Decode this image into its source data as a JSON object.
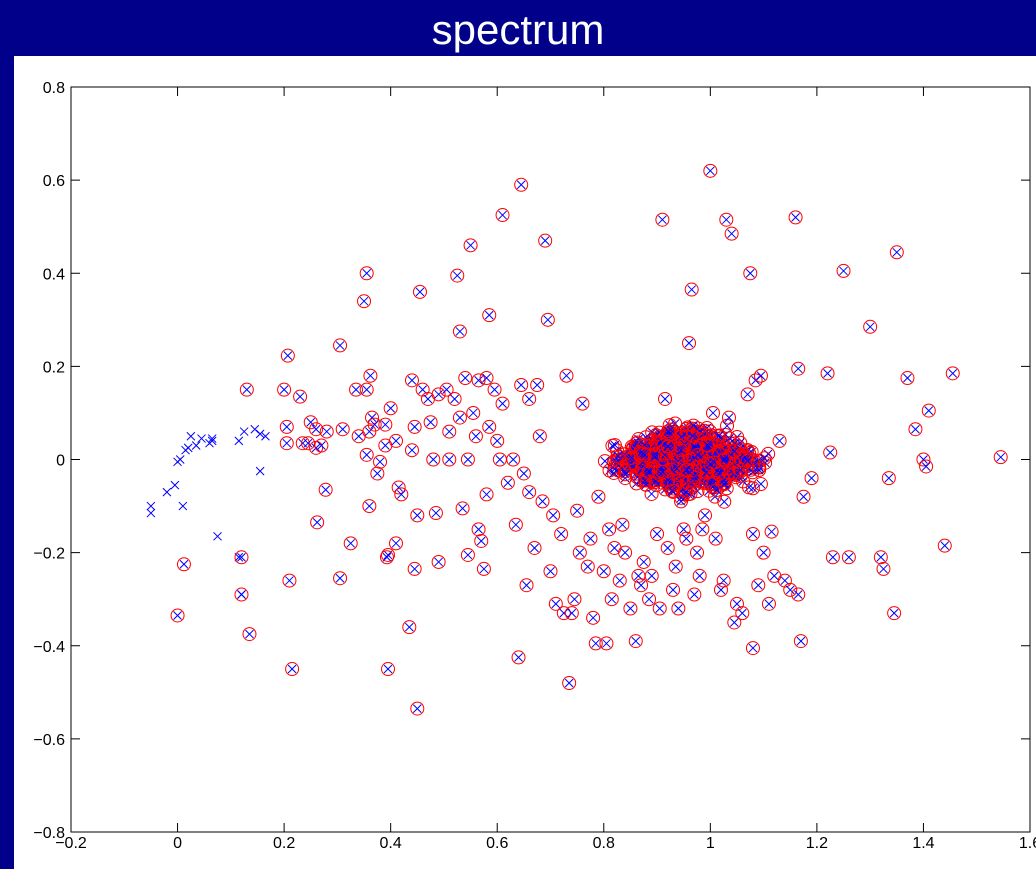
{
  "slide": {
    "title": "spectrum"
  },
  "chart_data": {
    "type": "scatter",
    "title": "",
    "xlabel": "",
    "ylabel": "",
    "xlim": [
      -0.2,
      1.6
    ],
    "ylim": [
      -0.8,
      0.8
    ],
    "x_ticks": [
      -0.2,
      0,
      0.2,
      0.4,
      0.6,
      0.8,
      1,
      1.2,
      1.4,
      1.6
    ],
    "y_ticks": [
      -0.8,
      -0.6,
      -0.4,
      -0.2,
      0,
      0.2,
      0.4,
      0.6,
      0.8
    ],
    "x_tick_labels": [
      "−0.2",
      "0",
      "0.2",
      "0.4",
      "0.6",
      "0.8",
      "1",
      "1.2",
      "1.4",
      "1.6"
    ],
    "y_tick_labels": [
      "−0.8",
      "−0.6",
      "−0.4",
      "−0.2",
      "0",
      "0.2",
      "0.4",
      "0.6",
      "0.8"
    ],
    "grid": false,
    "legend": "none",
    "series": [
      {
        "marker": "x",
        "color": "#0000ff",
        "points": [
          [
            -0.05,
            -0.1
          ],
          [
            -0.05,
            -0.115
          ],
          [
            -0.02,
            -0.07
          ],
          [
            -0.005,
            -0.055
          ],
          [
            0.01,
            -0.1
          ],
          [
            0.0,
            -0.005
          ],
          [
            0.005,
            0.0
          ],
          [
            0.015,
            0.02
          ],
          [
            0.02,
            0.025
          ],
          [
            0.025,
            0.05
          ],
          [
            0.035,
            0.03
          ],
          [
            0.045,
            0.045
          ],
          [
            0.06,
            0.035
          ],
          [
            0.065,
            0.04
          ],
          [
            0.065,
            0.045
          ],
          [
            0.075,
            -0.165
          ],
          [
            0.115,
            0.04
          ],
          [
            0.125,
            0.06
          ],
          [
            0.145,
            0.065
          ],
          [
            0.155,
            0.055
          ],
          [
            0.165,
            0.05
          ],
          [
            0.155,
            -0.025
          ],
          [
            0.115,
            -0.21
          ],
          [
            0.12,
            -0.29
          ]
        ]
      },
      {
        "marker": "x+o",
        "color": "#0000ff",
        "ring_color": "#ff0000",
        "points": [
          [
            0.0,
            -0.335
          ],
          [
            0.012,
            -0.225
          ],
          [
            0.12,
            -0.21
          ],
          [
            0.12,
            -0.29
          ],
          [
            0.13,
            0.15
          ],
          [
            0.135,
            -0.375
          ],
          [
            0.2,
            0.15
          ],
          [
            0.205,
            0.07
          ],
          [
            0.205,
            0.035
          ],
          [
            0.21,
            -0.26
          ],
          [
            0.215,
            -0.45
          ],
          [
            0.207,
            0.223
          ],
          [
            0.235,
            0.035
          ],
          [
            0.23,
            0.135
          ],
          [
            0.245,
            0.035
          ],
          [
            0.25,
            0.08
          ],
          [
            0.26,
            0.065
          ],
          [
            0.26,
            0.025
          ],
          [
            0.27,
            0.03
          ],
          [
            0.262,
            -0.135
          ],
          [
            0.28,
            0.06
          ],
          [
            0.278,
            -0.065
          ],
          [
            0.305,
            0.245
          ],
          [
            0.31,
            0.065
          ],
          [
            0.305,
            -0.255
          ],
          [
            0.325,
            -0.18
          ],
          [
            0.335,
            0.15
          ],
          [
            0.34,
            0.05
          ],
          [
            0.35,
            0.34
          ],
          [
            0.355,
            0.4
          ],
          [
            0.355,
            0.15
          ],
          [
            0.362,
            0.18
          ],
          [
            0.36,
            0.06
          ],
          [
            0.365,
            0.09
          ],
          [
            0.37,
            0.075
          ],
          [
            0.355,
            0.01
          ],
          [
            0.38,
            -0.005
          ],
          [
            0.375,
            -0.03
          ],
          [
            0.36,
            -0.1
          ],
          [
            0.39,
            0.075
          ],
          [
            0.39,
            0.03
          ],
          [
            0.4,
            0.11
          ],
          [
            0.395,
            -0.205
          ],
          [
            0.393,
            -0.21
          ],
          [
            0.41,
            0.04
          ],
          [
            0.41,
            -0.18
          ],
          [
            0.415,
            -0.06
          ],
          [
            0.42,
            -0.075
          ],
          [
            0.395,
            -0.45
          ],
          [
            0.435,
            -0.36
          ],
          [
            0.44,
            0.17
          ],
          [
            0.445,
            0.07
          ],
          [
            0.44,
            0.02
          ],
          [
            0.45,
            -0.12
          ],
          [
            0.445,
            -0.235
          ],
          [
            0.45,
            -0.535
          ],
          [
            0.455,
            0.36
          ],
          [
            0.46,
            0.15
          ],
          [
            0.47,
            0.13
          ],
          [
            0.475,
            0.08
          ],
          [
            0.48,
            0.0
          ],
          [
            0.485,
            -0.115
          ],
          [
            0.49,
            0.14
          ],
          [
            0.49,
            -0.22
          ],
          [
            0.505,
            0.15
          ],
          [
            0.51,
            0.06
          ],
          [
            0.51,
            0.0
          ],
          [
            0.52,
            0.13
          ],
          [
            0.525,
            0.395
          ],
          [
            0.53,
            0.275
          ],
          [
            0.53,
            0.09
          ],
          [
            0.535,
            -0.105
          ],
          [
            0.54,
            0.175
          ],
          [
            0.545,
            0.0
          ],
          [
            0.545,
            -0.205
          ],
          [
            0.55,
            0.46
          ],
          [
            0.555,
            0.1
          ],
          [
            0.56,
            0.05
          ],
          [
            0.565,
            0.17
          ],
          [
            0.565,
            -0.15
          ],
          [
            0.57,
            -0.175
          ],
          [
            0.575,
            -0.235
          ],
          [
            0.58,
            0.175
          ],
          [
            0.585,
            0.31
          ],
          [
            0.585,
            0.07
          ],
          [
            0.58,
            -0.075
          ],
          [
            0.595,
            0.15
          ],
          [
            0.6,
            0.04
          ],
          [
            0.605,
            0.0
          ],
          [
            0.61,
            0.525
          ],
          [
            0.61,
            0.12
          ],
          [
            0.62,
            -0.05
          ],
          [
            0.63,
            0.0
          ],
          [
            0.635,
            -0.14
          ],
          [
            0.64,
            -0.425
          ],
          [
            0.645,
            0.59
          ],
          [
            0.645,
            0.16
          ],
          [
            0.65,
            -0.03
          ],
          [
            0.655,
            -0.27
          ],
          [
            0.66,
            0.13
          ],
          [
            0.66,
            -0.07
          ],
          [
            0.67,
            -0.19
          ],
          [
            0.675,
            0.16
          ],
          [
            0.68,
            0.05
          ],
          [
            0.685,
            -0.09
          ],
          [
            0.69,
            0.47
          ],
          [
            0.695,
            0.3
          ],
          [
            0.7,
            -0.24
          ],
          [
            0.705,
            -0.12
          ],
          [
            0.71,
            -0.31
          ],
          [
            0.72,
            -0.16
          ],
          [
            0.725,
            -0.33
          ],
          [
            0.73,
            0.18
          ],
          [
            0.735,
            -0.48
          ],
          [
            0.74,
            -0.33
          ],
          [
            0.745,
            -0.3
          ],
          [
            0.75,
            -0.11
          ],
          [
            0.755,
            -0.2
          ],
          [
            0.76,
            0.12
          ],
          [
            0.77,
            -0.23
          ],
          [
            0.775,
            -0.17
          ],
          [
            0.78,
            -0.34
          ],
          [
            0.785,
            -0.395
          ],
          [
            0.79,
            -0.08
          ],
          [
            0.8,
            -0.24
          ],
          [
            0.805,
            -0.395
          ],
          [
            0.81,
            -0.15
          ],
          [
            0.815,
            -0.3
          ],
          [
            0.82,
            -0.19
          ],
          [
            0.83,
            -0.26
          ],
          [
            0.835,
            -0.14
          ],
          [
            0.84,
            -0.2
          ],
          [
            0.85,
            -0.32
          ],
          [
            0.86,
            -0.39
          ],
          [
            0.865,
            -0.25
          ],
          [
            0.87,
            -0.27
          ],
          [
            0.875,
            -0.22
          ],
          [
            0.885,
            -0.3
          ],
          [
            0.89,
            -0.25
          ],
          [
            0.9,
            -0.16
          ],
          [
            0.905,
            -0.32
          ],
          [
            0.91,
            0.515
          ],
          [
            0.915,
            0.13
          ],
          [
            0.92,
            -0.19
          ],
          [
            0.93,
            -0.28
          ],
          [
            0.935,
            -0.23
          ],
          [
            0.94,
            -0.32
          ],
          [
            0.945,
            -0.09
          ],
          [
            0.95,
            -0.15
          ],
          [
            0.955,
            -0.17
          ],
          [
            0.96,
            0.25
          ],
          [
            0.965,
            0.365
          ],
          [
            0.97,
            -0.29
          ],
          [
            0.975,
            -0.2
          ],
          [
            0.98,
            -0.25
          ],
          [
            0.985,
            -0.15
          ],
          [
            0.99,
            -0.12
          ],
          [
            1.0,
            0.62
          ],
          [
            1.005,
            0.1
          ],
          [
            1.01,
            -0.17
          ],
          [
            1.02,
            -0.28
          ],
          [
            1.025,
            -0.26
          ],
          [
            1.03,
            0.515
          ],
          [
            1.035,
            0.09
          ],
          [
            1.04,
            0.485
          ],
          [
            1.045,
            -0.35
          ],
          [
            1.05,
            -0.31
          ],
          [
            1.06,
            -0.33
          ],
          [
            1.07,
            0.14
          ],
          [
            1.075,
            0.4
          ],
          [
            1.08,
            -0.16
          ],
          [
            1.08,
            -0.405
          ],
          [
            1.085,
            0.17
          ],
          [
            1.09,
            -0.27
          ],
          [
            1.095,
            0.18
          ],
          [
            1.1,
            -0.2
          ],
          [
            1.11,
            -0.31
          ],
          [
            1.115,
            -0.155
          ],
          [
            1.12,
            -0.25
          ],
          [
            1.13,
            0.04
          ],
          [
            1.14,
            -0.26
          ],
          [
            1.15,
            -0.28
          ],
          [
            1.16,
            0.52
          ],
          [
            1.165,
            0.195
          ],
          [
            1.165,
            -0.29
          ],
          [
            1.17,
            -0.39
          ],
          [
            1.175,
            -0.08
          ],
          [
            1.19,
            -0.04
          ],
          [
            1.22,
            0.185
          ],
          [
            1.225,
            0.015
          ],
          [
            1.23,
            -0.21
          ],
          [
            1.25,
            0.405
          ],
          [
            1.26,
            -0.21
          ],
          [
            1.3,
            0.285
          ],
          [
            1.32,
            -0.21
          ],
          [
            1.325,
            -0.235
          ],
          [
            1.335,
            -0.04
          ],
          [
            1.345,
            -0.33
          ],
          [
            1.35,
            0.445
          ],
          [
            1.37,
            0.175
          ],
          [
            1.385,
            0.065
          ],
          [
            1.4,
            0.0
          ],
          [
            1.405,
            -0.015
          ],
          [
            1.41,
            0.105
          ],
          [
            1.44,
            -0.185
          ],
          [
            1.455,
            0.185
          ],
          [
            1.545,
            0.005
          ]
        ]
      }
    ]
  }
}
